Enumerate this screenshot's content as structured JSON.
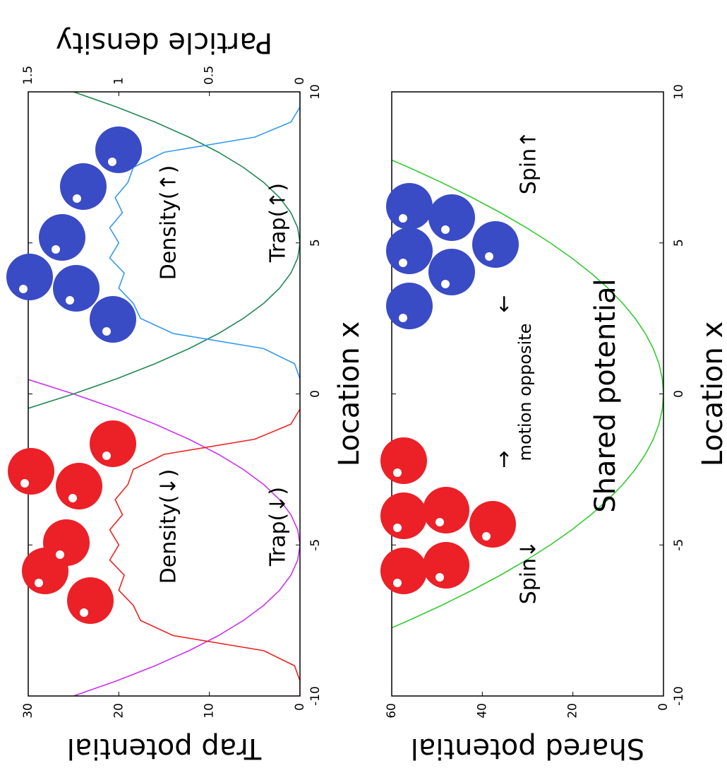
{
  "chart_data": [
    {
      "type": "line",
      "xlabel": "Location x",
      "ylabel": "Trap potential",
      "y2label": "Particle density",
      "x": [
        -10,
        -9.5,
        -9,
        -8.5,
        -8,
        -7.5,
        -7,
        -6.5,
        -6,
        -5.5,
        -5,
        -4.5,
        -4,
        -3.5,
        -3,
        -2.5,
        -2,
        -1.5,
        -1,
        -0.5,
        0,
        0.5,
        1,
        1.5,
        2,
        2.5,
        3,
        3.5,
        4,
        4.5,
        5,
        5.5,
        6,
        6.5,
        7,
        7.5,
        8,
        8.5,
        9,
        9.5,
        10
      ],
      "xlim": [
        -10,
        10
      ],
      "xticks": [
        -10,
        -5,
        0,
        5,
        10
      ],
      "ylim": [
        0,
        30
      ],
      "yticks": [
        0,
        10,
        20,
        30
      ],
      "y2lim": [
        0,
        1.5
      ],
      "y2ticks": [
        0,
        0.5,
        1,
        1.5
      ],
      "series": [
        {
          "name": "Trap(↓)",
          "color": "#cc33ee",
          "values": [
            25,
            20.25,
            16,
            12.25,
            9,
            6.25,
            4,
            2.25,
            1,
            0.25,
            0,
            0.25,
            1,
            2.25,
            4,
            6.25,
            9,
            12.25,
            16,
            20.25,
            25,
            30.25,
            null,
            null,
            null,
            null,
            null,
            null,
            null,
            null,
            null,
            null,
            null,
            null,
            null,
            null,
            null,
            null,
            null,
            null,
            null
          ]
        },
        {
          "name": "Density(↓)",
          "color": "#ee2222",
          "axis": "y2",
          "values": [
            0,
            0,
            0.03,
            0.2,
            0.7,
            0.88,
            0.92,
            1.0,
            0.97,
            1.05,
            1.0,
            1.05,
            0.98,
            1.02,
            0.95,
            0.92,
            0.75,
            0.25,
            0.05,
            0,
            null,
            null,
            null,
            null,
            null,
            null,
            null,
            null,
            null,
            null,
            null,
            null,
            null,
            null,
            null,
            null,
            null,
            null,
            null,
            null,
            null
          ]
        },
        {
          "name": "Trap(↑)",
          "color": "#228855",
          "values": [
            null,
            null,
            null,
            null,
            null,
            null,
            null,
            null,
            null,
            null,
            null,
            null,
            null,
            null,
            null,
            null,
            null,
            null,
            null,
            30.25,
            25,
            20.25,
            16,
            12.25,
            9,
            6.25,
            4,
            2.25,
            1,
            0.25,
            0,
            0.25,
            1,
            2.25,
            4,
            6.25,
            9,
            12.25,
            16,
            20.25,
            25
          ]
        },
        {
          "name": "Density(↑)",
          "color": "#3399ee",
          "axis": "y2",
          "values": [
            null,
            null,
            null,
            null,
            null,
            null,
            null,
            null,
            null,
            null,
            null,
            null,
            null,
            null,
            null,
            null,
            null,
            null,
            null,
            null,
            0,
            0,
            0.03,
            0.2,
            0.7,
            0.88,
            0.92,
            1.0,
            0.97,
            1.05,
            1.0,
            1.05,
            0.98,
            1.02,
            0.95,
            0.92,
            0.75,
            0.25,
            0.05,
            0,
            0
          ]
        }
      ]
    },
    {
      "type": "line",
      "xlabel": "Location x",
      "ylabel": "Shared potential",
      "x": [
        -8,
        -7.5,
        -7,
        -6.5,
        -6,
        -5.5,
        -5,
        -4.5,
        -4,
        -3.5,
        -3,
        -2.5,
        -2,
        -1.5,
        -1,
        -0.5,
        0,
        0.5,
        1,
        1.5,
        2,
        2.5,
        3,
        3.5,
        4,
        4.5,
        5,
        5.5,
        6,
        6.5,
        7,
        7.5,
        8
      ],
      "xlim": [
        -10,
        10
      ],
      "xticks": [
        -10,
        -5,
        0,
        5,
        10
      ],
      "ylim": [
        0,
        60
      ],
      "yticks": [
        0,
        20,
        40,
        60
      ],
      "series": [
        {
          "name": "Shared potential",
          "color": "#33cc33",
          "values": [
            64,
            56.25,
            49,
            42.25,
            36,
            30.25,
            25,
            20.25,
            16,
            12.25,
            9,
            6.25,
            4,
            2.25,
            1,
            0.25,
            0,
            0.25,
            1,
            2.25,
            4,
            6.25,
            9,
            12.25,
            16,
            20.25,
            25,
            30.25,
            36,
            42.25,
            49,
            56.25,
            64
          ]
        }
      ],
      "annotations": [
        "Spin↓",
        "Spin↑",
        "motion opposite",
        "→",
        "←"
      ]
    }
  ]
}
